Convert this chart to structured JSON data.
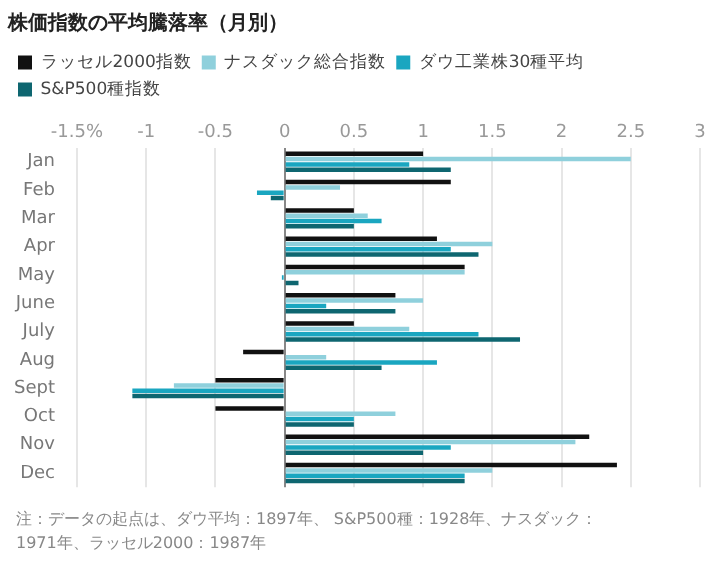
{
  "chart_data": {
    "type": "bar",
    "orientation": "horizontal",
    "title": "株価指数の平均騰落率（月別）",
    "categories": [
      "Jan",
      "Feb",
      "Mar",
      "Apr",
      "May",
      "June",
      "July",
      "Aug",
      "Sept",
      "Oct",
      "Nov",
      "Dec"
    ],
    "series": [
      {
        "name": "ラッセル2000指数",
        "color": "#111111",
        "values": [
          1.0,
          1.2,
          0.5,
          1.1,
          1.3,
          0.8,
          0.5,
          -0.3,
          -0.5,
          -0.5,
          2.2,
          2.4
        ]
      },
      {
        "name": "ナスダック総合指数",
        "color": "#8fd0dc",
        "values": [
          2.5,
          0.4,
          0.6,
          1.5,
          1.3,
          1.0,
          0.9,
          0.3,
          -0.8,
          0.8,
          2.1,
          1.5
        ]
      },
      {
        "name": "ダウ工業株30種平均",
        "color": "#1aa6c0",
        "values": [
          0.9,
          -0.2,
          0.7,
          1.2,
          -0.02,
          0.3,
          1.4,
          1.1,
          -1.1,
          0.5,
          1.2,
          1.3
        ]
      },
      {
        "name": "S&P500種指数",
        "color": "#0e6670",
        "values": [
          1.2,
          -0.1,
          0.5,
          1.4,
          0.1,
          0.8,
          1.7,
          0.7,
          -1.1,
          0.5,
          1.0,
          1.3
        ]
      }
    ],
    "xlim": [
      -1.5,
      3
    ],
    "xticks": [
      {
        "value": -1.5,
        "label": "-1.5%"
      },
      -1,
      -0.5,
      0,
      0.5,
      1,
      1.5,
      2,
      2.5,
      3
    ],
    "grid": "x",
    "legend": "top",
    "annotations": [
      "注：データの起点は、ダウ平均：1897年、 S&P500種：1928年、ナスダック：1971年、ラッセル2000：1987年"
    ]
  }
}
